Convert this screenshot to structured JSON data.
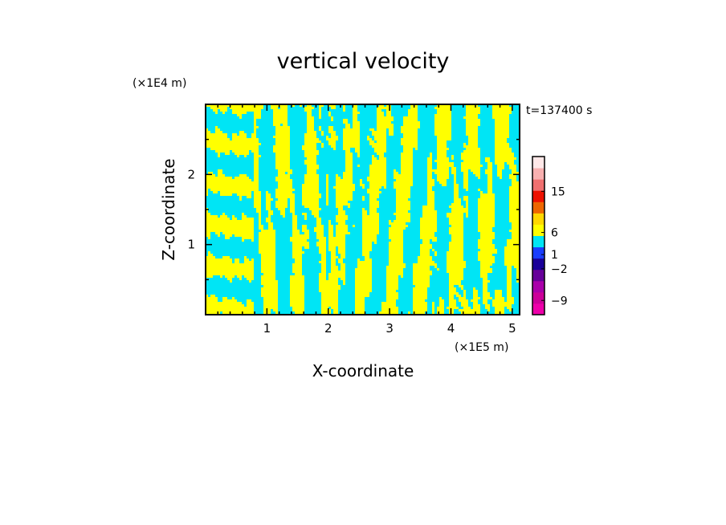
{
  "chart_data": {
    "type": "heatmap",
    "title": "vertical velocity",
    "xlabel": "X-coordinate",
    "ylabel": "Z-coordinate",
    "x_unit": "(×1E5 m)",
    "y_unit": "(×1E4 m)",
    "time_label": "t=137400 s",
    "xlim": [
      0,
      5.12
    ],
    "ylim": [
      0,
      3.0
    ],
    "x_ticks": [
      {
        "value": 1,
        "label": "1"
      },
      {
        "value": 2,
        "label": "2"
      },
      {
        "value": 3,
        "label": "3"
      },
      {
        "value": 4,
        "label": "4"
      },
      {
        "value": 5,
        "label": "5"
      }
    ],
    "y_ticks": [
      {
        "value": 1,
        "label": "1"
      },
      {
        "value": 2,
        "label": "2"
      }
    ],
    "field_colors": {
      "positive": "#ffff00",
      "negative": "#00e5f5"
    },
    "colorbar": {
      "levels": [
        {
          "color": "#ee00aa"
        },
        {
          "color": "#cc0099"
        },
        {
          "color": "#aa00aa"
        },
        {
          "color": "#660099"
        },
        {
          "color": "#1a0099"
        },
        {
          "color": "#1a3dff"
        },
        {
          "color": "#00e5f5"
        },
        {
          "color": "#ffff00"
        },
        {
          "color": "#ffd700"
        },
        {
          "color": "#ee6600"
        },
        {
          "color": "#ee1100"
        },
        {
          "color": "#f07070"
        },
        {
          "color": "#f8b0b0"
        },
        {
          "color": "#ffe8e8"
        }
      ],
      "labels": [
        {
          "label": "15",
          "at": 0.78
        },
        {
          "label": "6",
          "at": 0.52
        },
        {
          "label": "1",
          "at": 0.38
        },
        {
          "label": "−2",
          "at": 0.29
        },
        {
          "label": "−9",
          "at": 0.09
        }
      ]
    }
  }
}
